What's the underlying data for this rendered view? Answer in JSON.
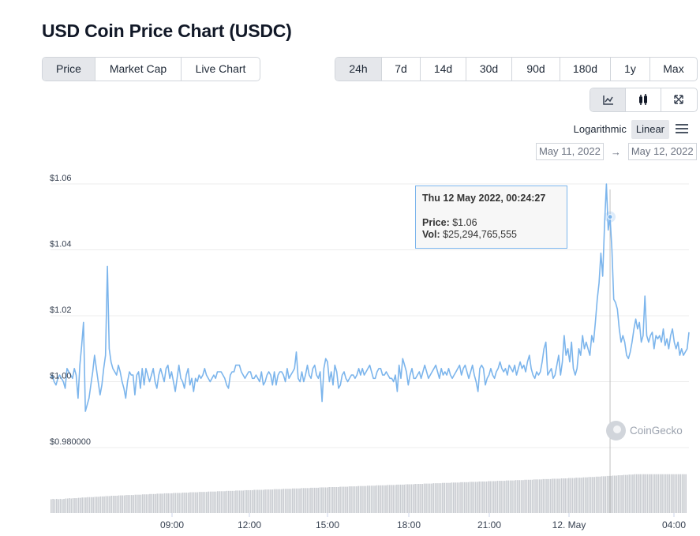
{
  "page": {
    "title": "USD Coin Price Chart (USDC)"
  },
  "metric_tabs": [
    {
      "label": "Price",
      "active": true
    },
    {
      "label": "Market Cap",
      "active": false
    },
    {
      "label": "Live Chart",
      "active": false
    }
  ],
  "range_tabs": [
    {
      "label": "24h",
      "active": true
    },
    {
      "label": "7d",
      "active": false
    },
    {
      "label": "14d",
      "active": false
    },
    {
      "label": "30d",
      "active": false
    },
    {
      "label": "90d",
      "active": false
    },
    {
      "label": "180d",
      "active": false
    },
    {
      "label": "1y",
      "active": false
    },
    {
      "label": "Max",
      "active": false
    }
  ],
  "chart_type_buttons": [
    {
      "icon": "line-chart-icon",
      "active": true
    },
    {
      "icon": "candlestick-icon",
      "active": false
    },
    {
      "icon": "fullscreen-icon",
      "active": false
    }
  ],
  "scale": {
    "log_label": "Logarithmic",
    "linear_label": "Linear",
    "active": "Linear",
    "menu_icon": "hamburger-menu-icon"
  },
  "date_range": {
    "from": "May 11, 2022",
    "arrow": "→",
    "to": "May 12, 2022"
  },
  "tooltip": {
    "date": "Thu 12 May 2022, 00:24:27",
    "price_label": "Price:",
    "price_value": "$1.06",
    "vol_label": "Vol:",
    "vol_value": "$25,294,765,555"
  },
  "watermark": {
    "text": "CoinGecko",
    "icon": "coingecko-logo-icon"
  },
  "colors": {
    "line": "#7cb5ec",
    "volume": "#c9ccd1",
    "grid": "#ececec",
    "crosshair": "#c0c0c0",
    "active_bg": "#e5e7eb"
  },
  "chart_data": {
    "type": "line",
    "series": [
      {
        "values": [
          1.001,
          1.002,
          1.0,
          0.999,
          1.001,
          1.002,
          1.001,
          1.0,
          0.998,
          1.004,
          1.003,
          1.002,
          1.001,
          1.004,
          1.002,
          0.995,
          1.005,
          1.011,
          1.018,
          0.991,
          0.993,
          0.995,
          0.999,
          1.003,
          1.008,
          1.004,
          1.0,
          0.996,
          0.999,
          1.004,
          1.008,
          1.035,
          1.01,
          1.006,
          1.004,
          1.003,
          1.002,
          1.005,
          1.003,
          1.0,
          0.998,
          0.995,
          1.0,
          1.003,
          1.002,
          1.002,
          0.996,
          1.002,
          1.003,
          0.998,
          1.004,
          0.999,
          1.004,
          1.002,
          1.0,
          1.002,
          1.004,
          1.0,
          0.998,
          1.002,
          1.004,
          1.002,
          1.0,
          1.004,
          1.005,
          1.001,
          1.003,
          1.0,
          0.997,
          1.001,
          1.005,
          1.001,
          1.0,
          0.998,
          1.002,
          1.004,
          0.999,
          1.001,
          0.997,
          1.001,
          1.0,
          1.002,
          1.001,
          1.002,
          1.004,
          1.002,
          1.001,
          1.0,
          1.001,
          1.002,
          1.001,
          1.003,
          1.003,
          1.003,
          1.002,
          1.001,
          0.999,
          0.998,
          1.002,
          1.003,
          1.003,
          1.005,
          1.005,
          1.005,
          1.003,
          1.002,
          1.001,
          1.002,
          1.003,
          1.003,
          1.001,
          1.001,
          1.002,
          1.001,
          1.0,
          1.003,
          0.999,
          1.0,
          1.002,
          1.003,
          1.002,
          0.999,
          1.003,
          0.999,
          1.002,
          1.003,
          1.003,
          1.002,
          1.0,
          1.004,
          1.001,
          1.002,
          1.003,
          1.004,
          1.009,
          1.001,
          1.0,
          1.003,
          1.0,
          1.002,
          1.005,
          1.002,
          1.001,
          1.004,
          1.005,
          1.002,
          1.001,
          1.003,
          0.994,
          1.004,
          1.007,
          1.006,
          1.0,
          1.003,
          0.999,
          1.005,
          1.003,
          0.998,
          0.999,
          1.002,
          1.003,
          1.001,
          1.0,
          1.001,
          1.002,
          1.002,
          1.001,
          1.002,
          1.004,
          1.002,
          1.004,
          1.002,
          1.003,
          1.004,
          1.005,
          1.003,
          1.001,
          1.001,
          1.003,
          1.004,
          1.004,
          1.002,
          1.002,
          1.003,
          1.002,
          1.001,
          1.001,
          1.0,
          1.002,
          0.997,
          1.005,
          1.001,
          1.007,
          1.005,
          1.003,
          0.999,
          1.002,
          1.004,
          1.001,
          1.001,
          1.002,
          1.003,
          1.001,
          1.003,
          1.005,
          1.003,
          1.001,
          1.002,
          1.003,
          1.004,
          1.005,
          1.003,
          1.001,
          1.004,
          1.002,
          1.003,
          1.002,
          1.004,
          1.002,
          1.001,
          1.002,
          1.003,
          1.004,
          1.005,
          1.002,
          1.004,
          1.005,
          1.003,
          1.001,
          1.003,
          1.005,
          1.002,
          1.0,
          0.997,
          1.004,
          1.005,
          1.004,
          0.999,
          1.001,
          1.002,
          1.004,
          1.002,
          1.001,
          1.003,
          1.004,
          1.006,
          1.004,
          1.003,
          1.004,
          1.002,
          1.005,
          1.004,
          1.003,
          1.005,
          1.002,
          1.004,
          1.006,
          1.004,
          1.005,
          1.003,
          1.006,
          1.008,
          1.004,
          1.002,
          1.001,
          1.003,
          1.002,
          1.003,
          1.006,
          1.01,
          1.012,
          1.002,
          1.003,
          1.004,
          1.001,
          1.002,
          1.005,
          1.008,
          1.002,
          1.006,
          1.014,
          1.008,
          1.01,
          1.006,
          1.012,
          1.004,
          1.002,
          1.004,
          1.01,
          1.008,
          1.014,
          1.01,
          1.012,
          1.01,
          1.008,
          1.014,
          1.012,
          1.018,
          1.025,
          1.03,
          1.039,
          1.032,
          1.048,
          1.06,
          1.046,
          1.05,
          1.04,
          1.025,
          1.024,
          1.022,
          1.016,
          1.012,
          1.014,
          1.012,
          1.008,
          1.007,
          1.009,
          1.012,
          1.016,
          1.019,
          1.016,
          1.018,
          1.012,
          1.014,
          1.026,
          1.014,
          1.012,
          1.014,
          1.015,
          1.01,
          1.014,
          1.013,
          1.014,
          1.012,
          1.016,
          1.011,
          1.013,
          1.01,
          1.014,
          1.016,
          1.012,
          1.01,
          1.012,
          1.008,
          1.01,
          1.008,
          1.009,
          1.01,
          1.015
        ],
        "volume_values": [
          0.04,
          0.041,
          0.04,
          0.041,
          0.04,
          0.041,
          0.04,
          0.041,
          0.042,
          0.042,
          0.043,
          0.042,
          0.043,
          0.043,
          0.043,
          0.044,
          0.044,
          0.045,
          0.045,
          0.045,
          0.046,
          0.046,
          0.046,
          0.046,
          0.047,
          0.047,
          0.047,
          0.048,
          0.048,
          0.048,
          0.049,
          0.049,
          0.049,
          0.05,
          0.05,
          0.05,
          0.05,
          0.051,
          0.051,
          0.051,
          0.051,
          0.052,
          0.052,
          0.052,
          0.052,
          0.052,
          0.053,
          0.053,
          0.053,
          0.053,
          0.054,
          0.054,
          0.054,
          0.054,
          0.055,
          0.055,
          0.055,
          0.055,
          0.056,
          0.056,
          0.056,
          0.056,
          0.057,
          0.057,
          0.057,
          0.057,
          0.057,
          0.058,
          0.058,
          0.058,
          0.058,
          0.058,
          0.059,
          0.059,
          0.059,
          0.059,
          0.06,
          0.06,
          0.06,
          0.06,
          0.06,
          0.061,
          0.061,
          0.061,
          0.061,
          0.061,
          0.062,
          0.062,
          0.062,
          0.062,
          0.062,
          0.063,
          0.063,
          0.063,
          0.063,
          0.063,
          0.064,
          0.064,
          0.064,
          0.064,
          0.064,
          0.065,
          0.065,
          0.065,
          0.065,
          0.065,
          0.066,
          0.066,
          0.066,
          0.066,
          0.066,
          0.067,
          0.067,
          0.067,
          0.067,
          0.067,
          0.067,
          0.068,
          0.068,
          0.068,
          0.068,
          0.068,
          0.069,
          0.069,
          0.069,
          0.069,
          0.069,
          0.07,
          0.07,
          0.07,
          0.07,
          0.07,
          0.071,
          0.071,
          0.071,
          0.071,
          0.071,
          0.072,
          0.072,
          0.072,
          0.072,
          0.072,
          0.073,
          0.073,
          0.073,
          0.073,
          0.073,
          0.074,
          0.074,
          0.074,
          0.074,
          0.074,
          0.075,
          0.075,
          0.075,
          0.075,
          0.075,
          0.075,
          0.076,
          0.076,
          0.076,
          0.076,
          0.076,
          0.077,
          0.077,
          0.077,
          0.077,
          0.077,
          0.078,
          0.078,
          0.078,
          0.078,
          0.078,
          0.079,
          0.079,
          0.079,
          0.079,
          0.079,
          0.08,
          0.08,
          0.08,
          0.08,
          0.08,
          0.08,
          0.081,
          0.081,
          0.081,
          0.081,
          0.081,
          0.082,
          0.082,
          0.082,
          0.082,
          0.082,
          0.083,
          0.083,
          0.083,
          0.083,
          0.083,
          0.084,
          0.084,
          0.084,
          0.084,
          0.084,
          0.085,
          0.085,
          0.085,
          0.085,
          0.085,
          0.086,
          0.086,
          0.086,
          0.086,
          0.086,
          0.087,
          0.087,
          0.087,
          0.087,
          0.087,
          0.088,
          0.088,
          0.088,
          0.088,
          0.088,
          0.089,
          0.089,
          0.089,
          0.089,
          0.089,
          0.09,
          0.09,
          0.09,
          0.09,
          0.09,
          0.091,
          0.091,
          0.091,
          0.091,
          0.091,
          0.092,
          0.092,
          0.092,
          0.092,
          0.092,
          0.093,
          0.093,
          0.093,
          0.093,
          0.093,
          0.094,
          0.094,
          0.094,
          0.094,
          0.094,
          0.095,
          0.095,
          0.095,
          0.095,
          0.095,
          0.096,
          0.096,
          0.096,
          0.096,
          0.096,
          0.097,
          0.097,
          0.097,
          0.097,
          0.097,
          0.098,
          0.098,
          0.098,
          0.098,
          0.098,
          0.099,
          0.099,
          0.099,
          0.099,
          0.099,
          0.1,
          0.1,
          0.1,
          0.1,
          0.101,
          0.101,
          0.101,
          0.101,
          0.102,
          0.102,
          0.102,
          0.102,
          0.103,
          0.103,
          0.103,
          0.104,
          0.104,
          0.104,
          0.104,
          0.105,
          0.105,
          0.105,
          0.106,
          0.106,
          0.106,
          0.107,
          0.107,
          0.107,
          0.108,
          0.108,
          0.108,
          0.109,
          0.109,
          0.109,
          0.11,
          0.11,
          0.11,
          0.111,
          0.111,
          0.111,
          0.112,
          0.112,
          0.112,
          0.112,
          0.112,
          0.112,
          0.112,
          0.112,
          0.112,
          0.112,
          0.112,
          0.112,
          0.112,
          0.112,
          0.112,
          0.112,
          0.112,
          0.112,
          0.112,
          0.112,
          0.112,
          0.112,
          0.112,
          0.112,
          0.112,
          0.112,
          0.112,
          0.112,
          0.112
        ]
      }
    ],
    "y_ticks": [
      {
        "value": 1.06,
        "label": "$1.06"
      },
      {
        "value": 1.04,
        "label": "$1.04"
      },
      {
        "value": 1.02,
        "label": "$1.02"
      },
      {
        "value": 1.0,
        "label": "$1.00"
      },
      {
        "value": 0.98,
        "label": "$0.980000"
      }
    ],
    "x_ticks": [
      "09:00",
      "12:00",
      "15:00",
      "18:00",
      "21:00",
      "12. May",
      "04:00"
    ],
    "ylim": [
      0.96,
      1.065
    ],
    "hover_index": 305,
    "grid": true,
    "legend": false
  }
}
